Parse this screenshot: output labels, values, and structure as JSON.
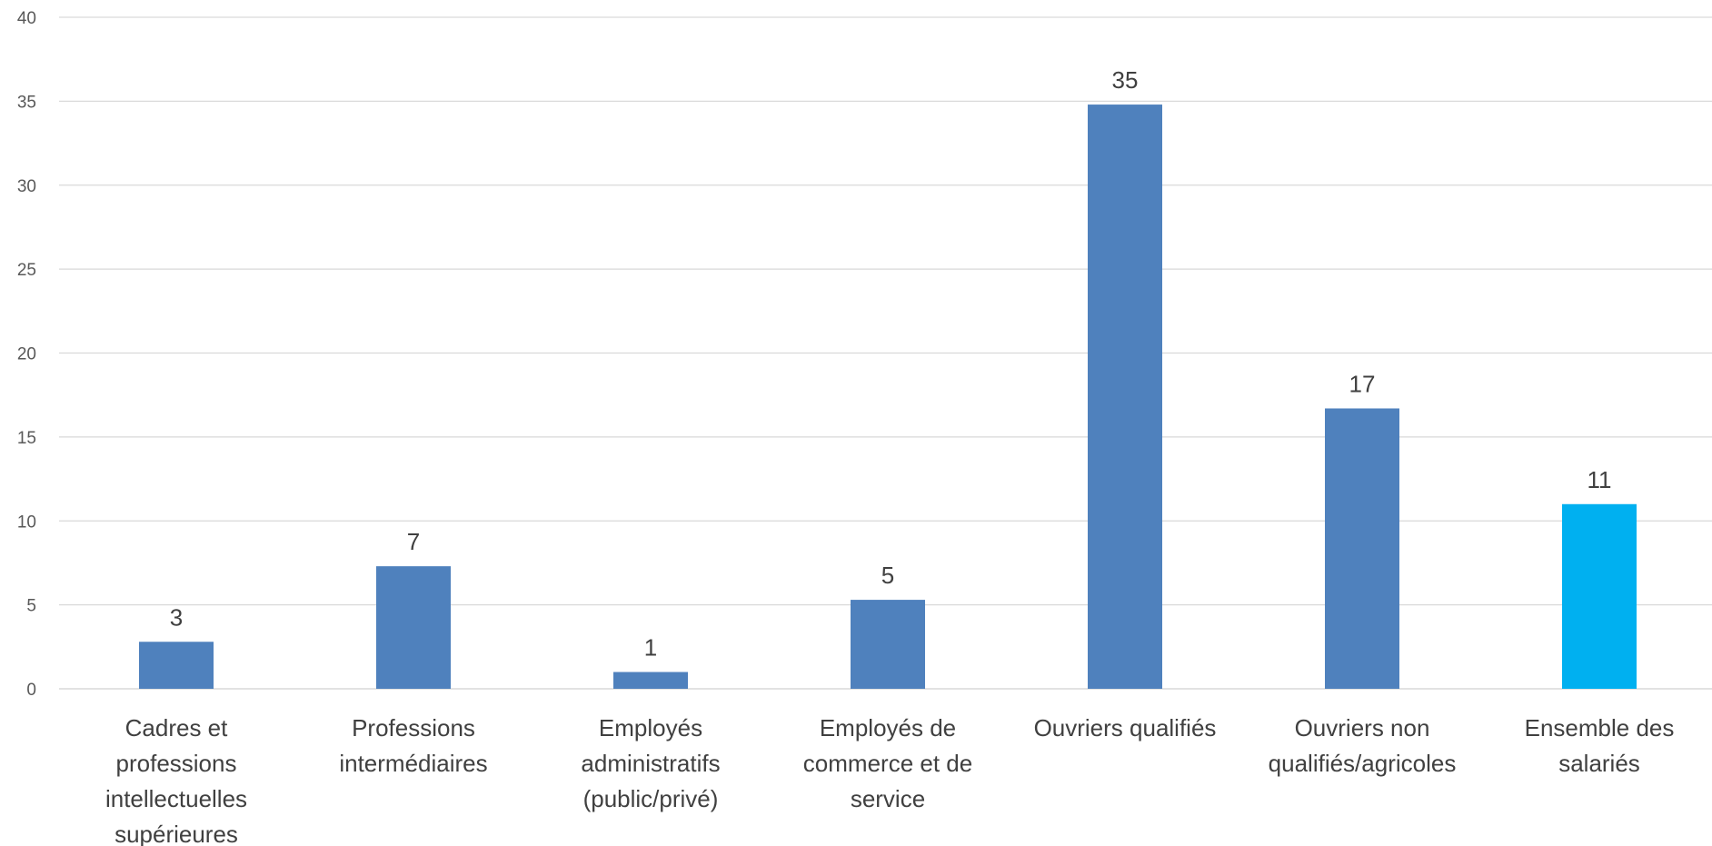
{
  "chart_data": {
    "type": "bar",
    "categories": [
      [
        "Cadres et",
        "professions",
        "intellectuelles",
        "supérieures"
      ],
      [
        "Professions",
        "intermédiaires"
      ],
      [
        "Employés",
        "administratifs",
        "(public/privé)"
      ],
      [
        "Employés de",
        "commerce et de",
        "service"
      ],
      [
        "Ouvriers qualifiés"
      ],
      [
        "Ouvriers non",
        "qualifiés/agricoles"
      ],
      [
        "Ensemble des",
        "salariés"
      ]
    ],
    "values": [
      2.8,
      7.3,
      1.0,
      5.3,
      34.8,
      16.7,
      11.0
    ],
    "data_labels": [
      "3",
      "7",
      "1",
      "5",
      "35",
      "17",
      "11"
    ],
    "ylim": [
      0,
      40
    ],
    "yticks": [
      0,
      5,
      10,
      15,
      20,
      25,
      30,
      35,
      40
    ],
    "grid": true,
    "legend": "none",
    "colors": {
      "bar": "#4f81bd",
      "highlight": "#00b0f0",
      "grid": "#d9d9d9",
      "axis": "#d9d9d9"
    },
    "highlight_index": 6
  }
}
